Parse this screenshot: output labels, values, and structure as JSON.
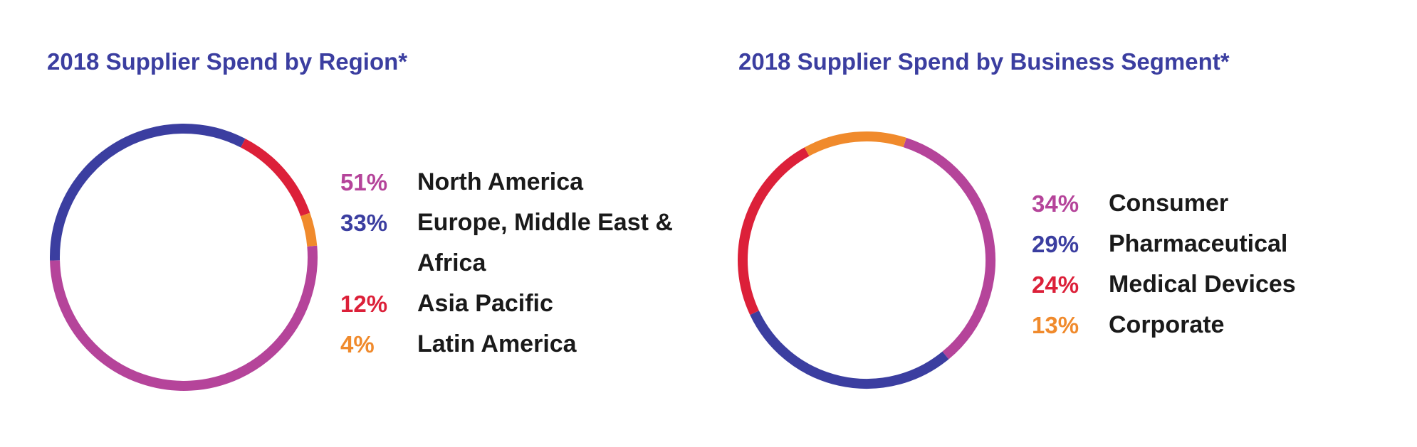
{
  "chart_data": [
    {
      "type": "pie",
      "title": "2018 Supplier Spend by Region*",
      "categories": [
        "North America",
        "Europe, Middle East & Africa",
        "Asia Pacific",
        "Latin America"
      ],
      "values": [
        51,
        33,
        12,
        4
      ],
      "value_labels": [
        "51%",
        "33%",
        "12%",
        "4%"
      ],
      "colors": [
        "#b5449a",
        "#3b3ea0",
        "#dc2039",
        "#f08a2c"
      ],
      "donut": true,
      "legend_position": "right"
    },
    {
      "type": "pie",
      "title": "2018 Supplier Spend by Business Segment*",
      "categories": [
        "Consumer",
        "Pharmaceutical",
        "Medical Devices",
        "Corporate"
      ],
      "values": [
        34,
        29,
        24,
        13
      ],
      "value_labels": [
        "34%",
        "29%",
        "24%",
        "13%"
      ],
      "colors": [
        "#b5449a",
        "#3b3ea0",
        "#dc2039",
        "#f08a2c"
      ],
      "donut": true,
      "legend_position": "right"
    }
  ]
}
